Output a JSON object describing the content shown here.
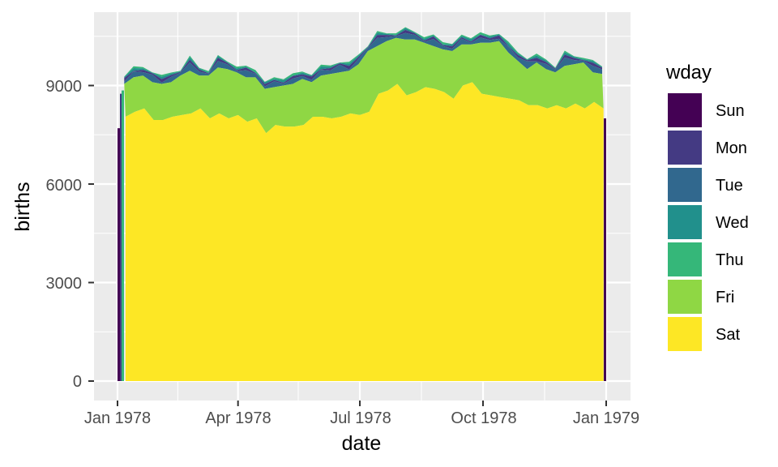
{
  "chart_data": {
    "type": "area",
    "stacked": true,
    "xlabel": "date",
    "ylabel": "births",
    "x_ticks": [
      "Jan 1978",
      "Apr 1978",
      "Jul 1978",
      "Oct 1978",
      "Jan 1979"
    ],
    "y_ticks": [
      "0",
      "3000",
      "6000",
      "9000"
    ],
    "ylim": [
      0,
      10900
    ],
    "grid": true,
    "legend": {
      "title": "wday",
      "position": "right",
      "entries": [
        "Sun",
        "Mon",
        "Tue",
        "Wed",
        "Thu",
        "Fri",
        "Sat"
      ]
    },
    "colors": {
      "Sun": "#440154",
      "Mon": "#443A83",
      "Tue": "#31688E",
      "Wed": "#21908C",
      "Thu": "#35B779",
      "Fri": "#8FD744",
      "Sat": "#FDE725",
      "panel": "#EBEBEB",
      "grid": "#FFFFFF"
    },
    "stack_order": [
      "Sat",
      "Fri",
      "Thu",
      "Wed",
      "Tue",
      "Mon",
      "Sun"
    ],
    "series": [
      {
        "name": "Sat",
        "x": [
          "1978-01-07",
          "1978-01-14",
          "1978-01-21",
          "1978-01-28",
          "1978-02-04",
          "1978-02-11",
          "1978-02-18",
          "1978-02-25",
          "1978-03-04",
          "1978-03-11",
          "1978-03-18",
          "1978-03-25",
          "1978-04-01",
          "1978-04-08",
          "1978-04-15",
          "1978-04-22",
          "1978-04-29",
          "1978-05-06",
          "1978-05-13",
          "1978-05-20",
          "1978-05-27",
          "1978-06-03",
          "1978-06-10",
          "1978-06-17",
          "1978-06-24",
          "1978-07-01",
          "1978-07-08",
          "1978-07-15",
          "1978-07-22",
          "1978-07-29",
          "1978-08-05",
          "1978-08-12",
          "1978-08-19",
          "1978-08-26",
          "1978-09-02",
          "1978-09-09",
          "1978-09-16",
          "1978-09-23",
          "1978-09-30",
          "1978-10-07",
          "1978-10-14",
          "1978-10-21",
          "1978-10-28",
          "1978-11-04",
          "1978-11-11",
          "1978-11-18",
          "1978-11-25",
          "1978-12-02",
          "1978-12-09",
          "1978-12-16",
          "1978-12-23",
          "1978-12-30"
        ],
        "values": [
          8050,
          8200,
          8300,
          7950,
          7950,
          8050,
          8100,
          8150,
          8300,
          8000,
          8150,
          8000,
          8100,
          7900,
          8000,
          7550,
          7800,
          7750,
          7750,
          7800,
          8050,
          8050,
          8000,
          8050,
          8150,
          8100,
          8200,
          8750,
          8850,
          9050,
          8700,
          8800,
          8950,
          8900,
          8800,
          8600,
          9000,
          9100,
          8750,
          8700,
          8650,
          8600,
          8550,
          8400,
          8400,
          8300,
          8400,
          8300,
          8450,
          8300,
          8500,
          8300
        ]
      },
      {
        "name": "Fri",
        "x": [
          "1978-01-06",
          "1978-01-13",
          "1978-01-20",
          "1978-01-27",
          "1978-02-03",
          "1978-02-10",
          "1978-02-17",
          "1978-02-24",
          "1978-03-03",
          "1978-03-10",
          "1978-03-17",
          "1978-03-24",
          "1978-03-31",
          "1978-04-07",
          "1978-04-14",
          "1978-04-21",
          "1978-04-28",
          "1978-05-05",
          "1978-05-12",
          "1978-05-19",
          "1978-05-26",
          "1978-06-02",
          "1978-06-09",
          "1978-06-16",
          "1978-06-23",
          "1978-06-30",
          "1978-07-07",
          "1978-07-14",
          "1978-07-21",
          "1978-07-28",
          "1978-08-04",
          "1978-08-11",
          "1978-08-18",
          "1978-08-25",
          "1978-09-01",
          "1978-09-08",
          "1978-09-15",
          "1978-09-22",
          "1978-09-29",
          "1978-10-06",
          "1978-10-13",
          "1978-10-20",
          "1978-10-27",
          "1978-11-03",
          "1978-11-10",
          "1978-11-17",
          "1978-11-24",
          "1978-12-01",
          "1978-12-08",
          "1978-12-15",
          "1978-12-22",
          "1978-12-29"
        ],
        "values": [
          1000,
          1050,
          1000,
          1150,
          1100,
          1050,
          1200,
          1300,
          1000,
          1300,
          1400,
          1500,
          1300,
          1350,
          1250,
          1350,
          1150,
          1250,
          1300,
          1400,
          1050,
          1250,
          1350,
          1350,
          1300,
          1550,
          1850,
          1450,
          1500,
          1400,
          1700,
          1600,
          1350,
          1300,
          1300,
          1450,
          1250,
          1150,
          1550,
          1600,
          1700,
          1400,
          1200,
          1100,
          1300,
          1200,
          1000,
          1300,
          1200,
          1400,
          900,
          1050
        ]
      }
    ],
    "other_layers_note": "Sun, Mon, Tue, Wed, Thu are stacked as thin spiky slivers above Fri; totals shown peak near 10700 in Sep 1978."
  }
}
